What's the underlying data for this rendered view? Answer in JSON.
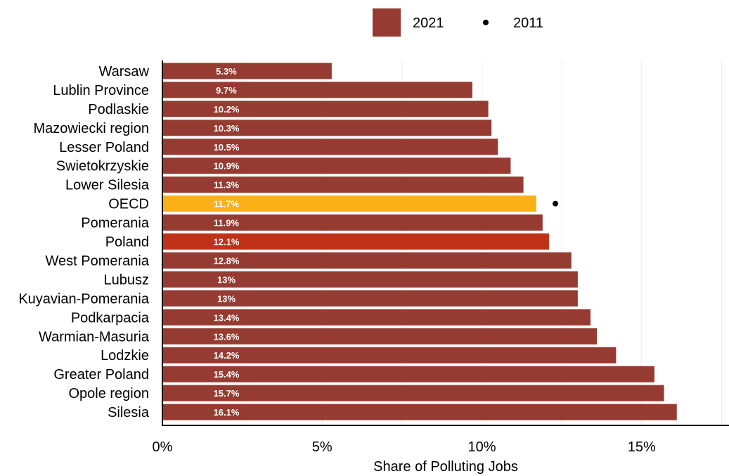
{
  "chart_data": {
    "type": "bar",
    "orientation": "horizontal",
    "categories": [
      "Warsaw",
      "Lublin Province",
      "Podlaskie",
      "Mazowiecki region",
      "Lesser Poland",
      "Swietokrzyskie",
      "Lower Silesia",
      "OECD",
      "Pomerania",
      "Poland",
      "West Pomerania",
      "Lubusz",
      "Kuyavian-Pomerania",
      "Podkarpacia",
      "Warmian-Masuria",
      "Lodzkie",
      "Greater Poland",
      "Opole region",
      "Silesia"
    ],
    "series": [
      {
        "name": "2021",
        "mark": "bar",
        "values": [
          5.3,
          9.7,
          10.2,
          10.3,
          10.5,
          10.9,
          11.3,
          11.7,
          11.9,
          12.1,
          12.8,
          13,
          13,
          13.4,
          13.6,
          14.2,
          15.4,
          15.7,
          16.1
        ],
        "labels": [
          "5.3%",
          "9.7%",
          "10.2%",
          "10.3%",
          "10.5%",
          "10.9%",
          "11.3%",
          "11.7%",
          "11.9%",
          "12.1%",
          "12.8%",
          "13%",
          "13%",
          "13.4%",
          "13.6%",
          "14.2%",
          "15.4%",
          "15.7%",
          "16.1%"
        ]
      },
      {
        "name": "2011",
        "mark": "point",
        "values": [
          null,
          null,
          null,
          null,
          null,
          null,
          null,
          12.3,
          null,
          null,
          null,
          null,
          null,
          null,
          null,
          null,
          null,
          null,
          null
        ]
      }
    ],
    "highlight_colors": {
      "OECD": "#fbb116",
      "Poland": "#c0311a"
    },
    "bar_color": "#953b31",
    "point_color": "#000000",
    "xlim": [
      0,
      17.5
    ],
    "x_ticks": [
      0,
      5,
      10,
      15
    ],
    "x_tick_labels": [
      "0%",
      "5%",
      "10%",
      "15%"
    ],
    "xlabel": "Share of Polluting Jobs",
    "grid": true,
    "legend_position": "top"
  }
}
